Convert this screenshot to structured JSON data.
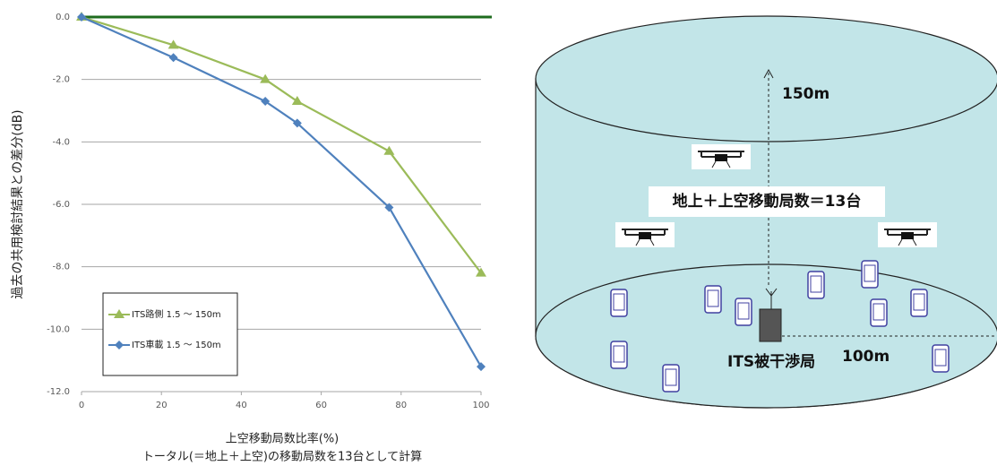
{
  "chart_data": {
    "type": "line",
    "ylabel": "過去の共用検討結果との差分(dB)",
    "xlabel": "上空移動局数比率(%)",
    "note": "トータル(＝地上＋上空)の移動局数を13台として計算",
    "x": [
      0,
      23,
      46,
      54,
      77,
      100
    ],
    "series": [
      {
        "name": "ITS路側 1.5 ～ 150m",
        "color": "#9bbb59",
        "marker": "triangle",
        "values": [
          0,
          -0.9,
          -2.0,
          -2.7,
          -4.3,
          -8.2
        ]
      },
      {
        "name": "ITS車載 1.5 ～ 150m",
        "color": "#4f81bd",
        "marker": "diamond",
        "values": [
          0,
          -1.3,
          -2.7,
          -3.4,
          -6.1,
          -11.2
        ]
      }
    ],
    "xlim": [
      0,
      100
    ],
    "xticks": [
      0,
      20,
      40,
      60,
      80,
      100
    ],
    "ylim": [
      -12,
      0
    ],
    "yticks": [
      {
        "value": 0,
        "label": "0.0"
      },
      {
        "value": -2,
        "label": "-2.0"
      },
      {
        "value": -4,
        "label": "-4.0"
      },
      {
        "value": -6,
        "label": "-6.0"
      },
      {
        "value": -8,
        "label": "-8.0"
      },
      {
        "value": -10,
        "label": "-10.0"
      },
      {
        "value": -12,
        "label": "-12.0"
      }
    ],
    "grid": true,
    "zero_line_color": "#1e6b1e",
    "legend": "lower-left"
  },
  "diagram": {
    "height_label": "150m",
    "count_label": "地上＋上空移動局数＝13台",
    "station_label": "ITS被干渉局",
    "radius_label": "100m"
  }
}
